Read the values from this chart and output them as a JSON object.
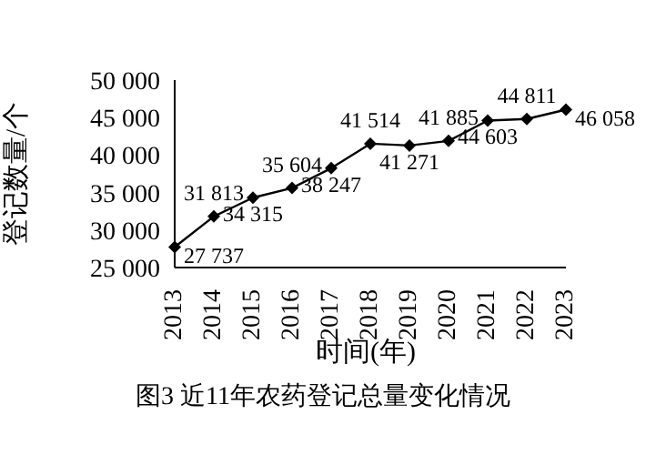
{
  "chart_data": {
    "type": "line",
    "title": "图3 近11年农药登记总量变化情况",
    "xlabel": "时间(年)",
    "ylabel": "登记数量/个",
    "categories": [
      "2013",
      "2014",
      "2015",
      "2016",
      "2017",
      "2018",
      "2019",
      "2020",
      "2021",
      "2022",
      "2023"
    ],
    "series": [
      {
        "color": "#000000",
        "values": [
          27737,
          31813,
          34315,
          35604,
          38247,
          41514,
          41271,
          41885,
          44603,
          44811,
          46058
        ],
        "value_labels": [
          "27 737",
          "31 813",
          "34 315",
          "35 604",
          "38 247",
          "41 514",
          "41 271",
          "41 885",
          "44 603",
          "44 811",
          "46 058"
        ]
      }
    ],
    "ylim": [
      25000,
      50000
    ],
    "yticks": [
      {
        "value": 25000,
        "label": "25 000"
      },
      {
        "value": 30000,
        "label": "30 000"
      },
      {
        "value": 35000,
        "label": "35 000"
      },
      {
        "value": 40000,
        "label": "40 000"
      },
      {
        "value": 45000,
        "label": "45 000"
      },
      {
        "value": 50000,
        "label": "50 000"
      }
    ],
    "marker": "diamond",
    "grid": false,
    "legend": false
  }
}
